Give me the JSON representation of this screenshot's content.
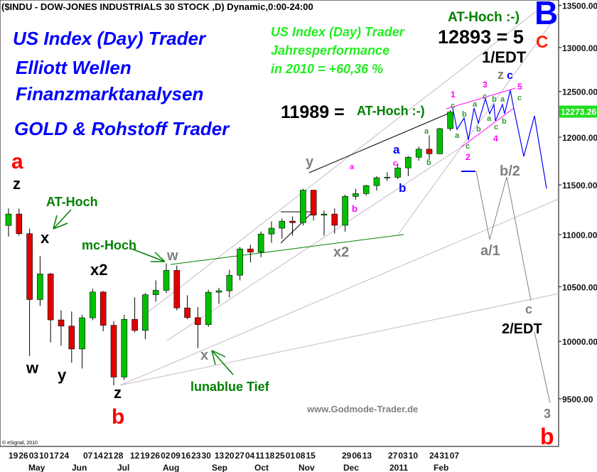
{
  "header": {
    "title": "($INDU - DOW-JONES INDUSTRIALS 30 STOCK ,D) Dynamic,0:00-24:00"
  },
  "promo": {
    "lines": [
      "US Index (Day) Trader",
      "Elliott Wellen",
      "Finanzmarktanalysen",
      "GOLD & Rohstoff Trader"
    ],
    "performance": [
      "US Index (Day) Trader",
      "Jahresperformance",
      "in 2010 = +60,36 %"
    ]
  },
  "callouts": {
    "at_high_value": "11989 =",
    "at_high_label": "AT-Hoch :-)",
    "top_at_high": "AT-Hoch :-)",
    "top_value": "12893 = 5",
    "top_edt": "1/EDT",
    "big_B": "B",
    "big_C": "C",
    "at_hoch_arrow": "AT-Hoch",
    "mc_hoch_arrow": "mc-Hoch",
    "lunablue_arrow": "lunablue Tief",
    "watermark": "www.Godmode-Trader.de",
    "copyright": "© eSignal, 2010"
  },
  "wave_labels": [
    "a",
    "z",
    "x",
    "w",
    "y",
    "x2",
    "z",
    "b",
    "w",
    "x",
    "y",
    "x2",
    "a",
    "b",
    "c",
    "a",
    "b",
    "a",
    "b",
    "1",
    "c",
    "a",
    "b",
    "2",
    "c",
    "a",
    "b",
    "3",
    "c",
    "b",
    "a",
    "a",
    "c",
    "4",
    "b",
    "z",
    "c",
    "5",
    "c",
    "b/2",
    "a/1",
    "c",
    "2/EDT",
    "3",
    "b"
  ],
  "colors": {
    "up": "#00c000",
    "down": "#e00000",
    "projection_blue": "#0000ff",
    "projection_gray": "#808080",
    "last_price_bg": "#22dd22",
    "channel": "#c8b8c8"
  },
  "chart_data": {
    "type": "candlestick",
    "title": "($INDU - DOW-JONES INDUSTRIALS 30 STOCK ,D) Dynamic,0:00-24:00",
    "y_scale": "log",
    "ylim": [
      9200,
      13700
    ],
    "y_ticks": [
      "13500.00",
      "13000.00",
      "12500.00",
      "12000.00",
      "11500.00",
      "11000.00",
      "10500.00",
      "10000.00",
      "9500.00"
    ],
    "x_day_ticks": [
      "19",
      "26",
      "03",
      "10",
      "17",
      "24",
      "07",
      "14",
      "21",
      "28",
      "12",
      "19",
      "26",
      "02",
      "09",
      "16",
      "23",
      "30",
      "13",
      "20",
      "27",
      "04",
      "11",
      "18",
      "25",
      "01",
      "08",
      "15",
      "29",
      "06",
      "13",
      "27",
      "03",
      "10",
      "24",
      "31",
      "07"
    ],
    "x_month_ticks": [
      "May",
      "Jun",
      "Jul",
      "Aug",
      "Sep",
      "Oct",
      "Nov",
      "Dec",
      "2011",
      "Feb"
    ],
    "last_price": "12273.26",
    "weekly_ohlc": [
      [
        11090,
        11260,
        10980,
        11204
      ],
      [
        11204,
        11258,
        10990,
        11009
      ],
      [
        11009,
        11060,
        9870,
        10380
      ],
      [
        10380,
        10790,
        10320,
        10620
      ],
      [
        10620,
        10630,
        9990,
        10193
      ],
      [
        10193,
        10280,
        9960,
        10137
      ],
      [
        10137,
        10270,
        9810,
        9932
      ],
      [
        9932,
        10240,
        9760,
        10212
      ],
      [
        10212,
        10480,
        10190,
        10450
      ],
      [
        10450,
        10460,
        10090,
        10144
      ],
      [
        10144,
        10180,
        9614,
        9686
      ],
      [
        9686,
        10240,
        9660,
        10198
      ],
      [
        10198,
        10400,
        10080,
        10098
      ],
      [
        10098,
        10440,
        10020,
        10425
      ],
      [
        10425,
        10560,
        10360,
        10466
      ],
      [
        10466,
        10720,
        10440,
        10654
      ],
      [
        10654,
        10700,
        10280,
        10303
      ],
      [
        10303,
        10420,
        10200,
        10214
      ],
      [
        10214,
        10310,
        9940,
        10150
      ],
      [
        10150,
        10470,
        10130,
        10448
      ],
      [
        10448,
        10490,
        10340,
        10462
      ],
      [
        10462,
        10660,
        10400,
        10608
      ],
      [
        10608,
        10880,
        10560,
        10860
      ],
      [
        10860,
        10900,
        10730,
        10829
      ],
      [
        10829,
        11030,
        10780,
        11006
      ],
      [
        11006,
        11130,
        10920,
        11063
      ],
      [
        11063,
        11160,
        10960,
        11133
      ],
      [
        11133,
        11180,
        10990,
        11118
      ],
      [
        11118,
        11460,
        11090,
        11445
      ],
      [
        11445,
        11450,
        11140,
        11193
      ],
      [
        11193,
        11240,
        10990,
        11204
      ],
      [
        11204,
        11260,
        11010,
        11092
      ],
      [
        11092,
        11400,
        11030,
        11382
      ],
      [
        11382,
        11460,
        11350,
        11410
      ],
      [
        11410,
        11500,
        11390,
        11492
      ],
      [
        11492,
        11590,
        11440,
        11573
      ],
      [
        11573,
        11630,
        11540,
        11578
      ],
      [
        11578,
        11720,
        11560,
        11675
      ],
      [
        11675,
        11800,
        11590,
        11787
      ],
      [
        11787,
        11900,
        11750,
        11872
      ],
      [
        11872,
        12020,
        11760,
        11824
      ],
      [
        11824,
        12100,
        11820,
        12092
      ],
      [
        12092,
        12290,
        12070,
        12273
      ]
    ]
  }
}
